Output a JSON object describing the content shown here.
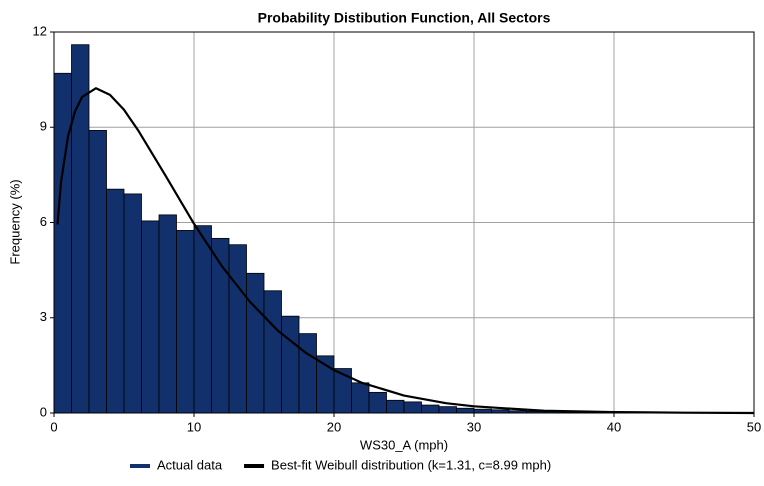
{
  "chart_data": {
    "type": "histogram",
    "title": "Probability Distibution Function, All Sectors",
    "xlabel": "WS30_A (mph)",
    "ylabel": "Frequency (%)",
    "bins": [
      0,
      1.25,
      2.5,
      3.75,
      5,
      6.25,
      7.5,
      8.75,
      10,
      11.25,
      12.5,
      13.75,
      15,
      16.25,
      17.5,
      18.75,
      20,
      21.25,
      22.5,
      23.75,
      25,
      26.25,
      27.5,
      28.75,
      30,
      31.25,
      32.5,
      33.75,
      35,
      36.25,
      37.5,
      38.75,
      40,
      41.25,
      42.5,
      43.75,
      45,
      46.25,
      47.5,
      48.75,
      50
    ],
    "series": [
      {
        "name": "Actual data",
        "color": "#12306c",
        "values": [
          10.7,
          11.6,
          8.9,
          7.05,
          6.9,
          6.05,
          6.24,
          5.75,
          5.9,
          5.5,
          5.3,
          4.4,
          3.85,
          3.05,
          2.5,
          1.8,
          1.4,
          0.95,
          0.65,
          0.4,
          0.35,
          0.25,
          0.2,
          0.15,
          0.12,
          0.1,
          0.07,
          0.05,
          0.04,
          0.03,
          0.02,
          0.02,
          0.01,
          0.01,
          0.01,
          0,
          0,
          0,
          0,
          0
        ]
      },
      {
        "name": "Best-fit Weibull distribution (k=1.31, c=8.99 mph)",
        "color": "#000000",
        "type": "line",
        "x": [
          0.25,
          0.5,
          1,
          1.5,
          2,
          3,
          4,
          5,
          6,
          8,
          10,
          12,
          14,
          16,
          18,
          20,
          22,
          25,
          28,
          30,
          35,
          40,
          45,
          50
        ],
        "values": [
          5.94,
          7.27,
          8.71,
          9.5,
          9.95,
          10.23,
          10.02,
          9.55,
          8.91,
          7.45,
          5.96,
          4.62,
          3.5,
          2.59,
          1.89,
          1.35,
          0.95,
          0.55,
          0.31,
          0.21,
          0.07,
          0.03,
          0.01,
          0
        ]
      }
    ],
    "xlim": [
      0,
      50
    ],
    "xticks": [
      0,
      10,
      20,
      30,
      40,
      50
    ],
    "ylim": [
      0,
      12
    ],
    "yticks": [
      0,
      3,
      6,
      9,
      12
    ],
    "grid": true,
    "legend": "bottom"
  }
}
